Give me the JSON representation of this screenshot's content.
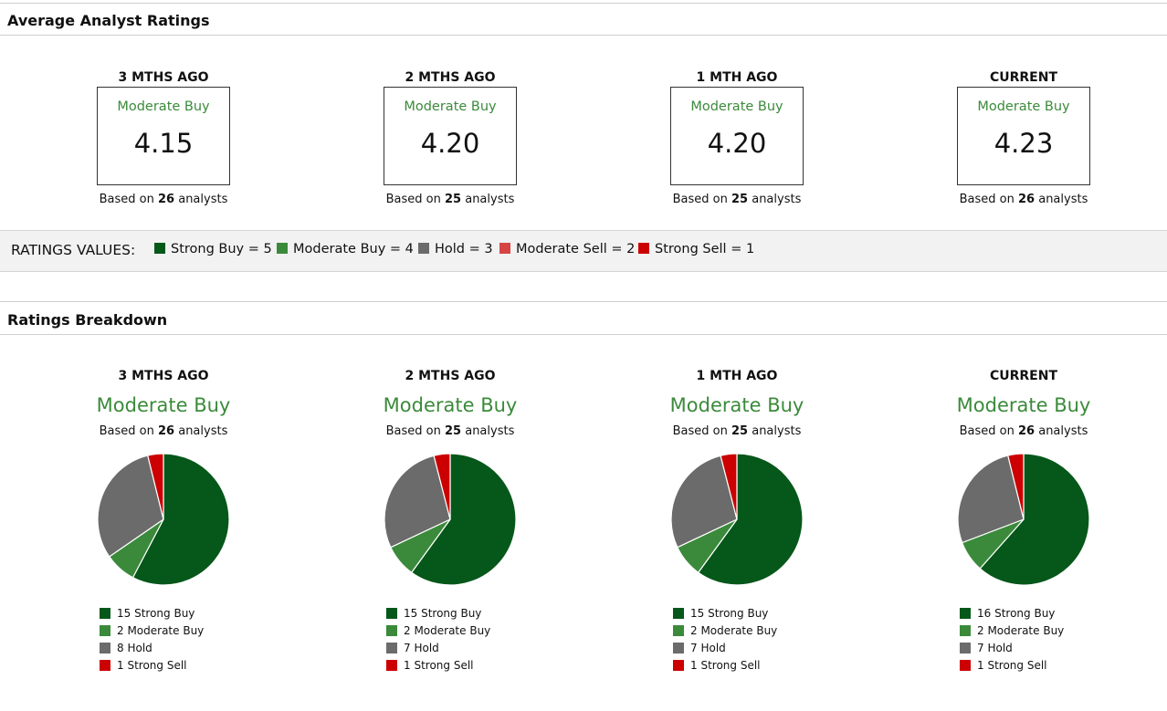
{
  "average": {
    "title": "Average Analyst Ratings",
    "based_prefix": "Based on ",
    "based_suffix": " analysts",
    "periods": [
      {
        "label": "3 MTHS AGO",
        "rating": "Moderate Buy",
        "score": "4.15",
        "analysts": "26"
      },
      {
        "label": "2 MTHS AGO",
        "rating": "Moderate Buy",
        "score": "4.20",
        "analysts": "25"
      },
      {
        "label": "1 MTH AGO",
        "rating": "Moderate Buy",
        "score": "4.20",
        "analysts": "25"
      },
      {
        "label": "CURRENT",
        "rating": "Moderate Buy",
        "score": "4.23",
        "analysts": "26"
      }
    ]
  },
  "ratings_values": {
    "title": "RATINGS VALUES:",
    "items": [
      {
        "label": "Strong Buy = 5",
        "color": "#05571a"
      },
      {
        "label": "Moderate Buy = 4",
        "color": "#3b8a3b"
      },
      {
        "label": "Hold = 3",
        "color": "#6b6b6b"
      },
      {
        "label": "Moderate Sell = 2",
        "color": "#d64545"
      },
      {
        "label": "Strong Sell = 1",
        "color": "#cc0000"
      }
    ]
  },
  "breakdown": {
    "title": "Ratings Breakdown",
    "based_prefix": "Based on ",
    "based_suffix": " analysts"
  },
  "chart_data": [
    {
      "type": "pie",
      "title": "3 MTHS AGO",
      "subtitle": "Moderate Buy",
      "analysts": "26",
      "slices": [
        {
          "label": "15 Strong Buy",
          "value": 15,
          "color": "#05571a"
        },
        {
          "label": "2 Moderate Buy",
          "value": 2,
          "color": "#3b8a3b"
        },
        {
          "label": "8 Hold",
          "value": 8,
          "color": "#6b6b6b"
        },
        {
          "label": "1 Strong Sell",
          "value": 1,
          "color": "#cc0000"
        }
      ]
    },
    {
      "type": "pie",
      "title": "2 MTHS AGO",
      "subtitle": "Moderate Buy",
      "analysts": "25",
      "slices": [
        {
          "label": "15 Strong Buy",
          "value": 15,
          "color": "#05571a"
        },
        {
          "label": "2 Moderate Buy",
          "value": 2,
          "color": "#3b8a3b"
        },
        {
          "label": "7 Hold",
          "value": 7,
          "color": "#6b6b6b"
        },
        {
          "label": "1 Strong Sell",
          "value": 1,
          "color": "#cc0000"
        }
      ]
    },
    {
      "type": "pie",
      "title": "1 MTH AGO",
      "subtitle": "Moderate Buy",
      "analysts": "25",
      "slices": [
        {
          "label": "15 Strong Buy",
          "value": 15,
          "color": "#05571a"
        },
        {
          "label": "2 Moderate Buy",
          "value": 2,
          "color": "#3b8a3b"
        },
        {
          "label": "7 Hold",
          "value": 7,
          "color": "#6b6b6b"
        },
        {
          "label": "1 Strong Sell",
          "value": 1,
          "color": "#cc0000"
        }
      ]
    },
    {
      "type": "pie",
      "title": "CURRENT",
      "subtitle": "Moderate Buy",
      "analysts": "26",
      "slices": [
        {
          "label": "16 Strong Buy",
          "value": 16,
          "color": "#05571a"
        },
        {
          "label": "2 Moderate Buy",
          "value": 2,
          "color": "#3b8a3b"
        },
        {
          "label": "7 Hold",
          "value": 7,
          "color": "#6b6b6b"
        },
        {
          "label": "1 Strong Sell",
          "value": 1,
          "color": "#cc0000"
        }
      ]
    }
  ]
}
